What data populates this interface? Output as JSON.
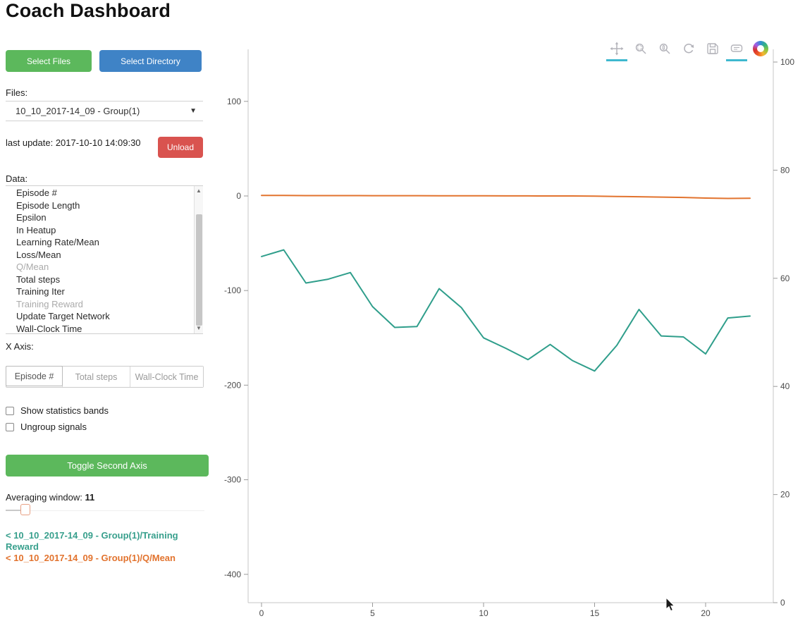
{
  "page": {
    "title": "Coach Dashboard"
  },
  "sidebar": {
    "select_files_label": "Select Files",
    "select_directory_label": "Select Directory",
    "files_label": "Files:",
    "files_selected": "10_10_2017-14_09 - Group(1)",
    "last_update": "last update: 2017-10-10 14:09:30",
    "unload_label": "Unload",
    "data_label": "Data:",
    "data_items": [
      {
        "label": "Episode #",
        "selected": false
      },
      {
        "label": "Episode Length",
        "selected": false
      },
      {
        "label": "Epsilon",
        "selected": false
      },
      {
        "label": "In Heatup",
        "selected": false
      },
      {
        "label": "Learning Rate/Mean",
        "selected": false
      },
      {
        "label": "Loss/Mean",
        "selected": false
      },
      {
        "label": "Q/Mean",
        "selected": true
      },
      {
        "label": "Total steps",
        "selected": false
      },
      {
        "label": "Training Iter",
        "selected": false
      },
      {
        "label": "Training Reward",
        "selected": true
      },
      {
        "label": "Update Target Network",
        "selected": false
      },
      {
        "label": "Wall-Clock Time",
        "selected": false
      }
    ],
    "x_axis_label": "X Axis:",
    "x_axis_tabs": [
      "Episode #",
      "Total steps",
      "Wall-Clock Time"
    ],
    "x_axis_active": "Episode #",
    "checkboxes": [
      {
        "label": "Show statistics bands",
        "checked": false
      },
      {
        "label": "Ungroup signals",
        "checked": false
      }
    ],
    "toggle_second_axis_label": "Toggle Second Axis",
    "averaging_window_label": "Averaging window:",
    "averaging_window_value": "11",
    "legend": [
      {
        "label": "< 10_10_2017-14_09 - Group(1)/Training Reward",
        "color": "#379f8c"
      },
      {
        "label": "< 10_10_2017-14_09 - Group(1)/Q/Mean",
        "color": "#e2732e"
      }
    ]
  },
  "toolbar": {
    "tools": [
      {
        "name": "pan",
        "active": true
      },
      {
        "name": "box-zoom",
        "active": false
      },
      {
        "name": "wheel-zoom",
        "active": false
      },
      {
        "name": "reset",
        "active": false
      },
      {
        "name": "save",
        "active": false
      },
      {
        "name": "hover",
        "active": true
      }
    ],
    "logo": "bokeh"
  },
  "chart_data": {
    "type": "line",
    "title": "",
    "xlabel": "",
    "ylabel": "",
    "x": [
      0,
      1,
      2,
      3,
      4,
      5,
      6,
      7,
      8,
      9,
      10,
      11,
      12,
      13,
      14,
      15,
      16,
      17,
      18,
      19,
      20,
      21,
      22
    ],
    "x_ticks": [
      0,
      5,
      10,
      15,
      20
    ],
    "left_axis_ticks": [
      100,
      0,
      -100,
      -200,
      -300,
      -400
    ],
    "right_axis_ticks": [
      100,
      80,
      60,
      40,
      20,
      0
    ],
    "left_axis_range": [
      -430,
      155
    ],
    "right_axis_range": [
      0,
      100
    ],
    "grid": false,
    "legend_position": "sidebar",
    "series": [
      {
        "name": "Training Reward",
        "color": "#2f9e8b",
        "axis": "left",
        "values": [
          -64,
          -57,
          -92,
          -88,
          -81,
          -117,
          -139,
          -138,
          -98,
          -118,
          -150,
          -161,
          -173,
          -157,
          -174,
          -185,
          -158,
          -120,
          -148,
          -149,
          -167,
          -129,
          -127
        ]
      },
      {
        "name": "Q/Mean",
        "color": "#e2732e",
        "axis": "left",
        "values": [
          0.5,
          0.5,
          0.4,
          0.4,
          0.4,
          0.3,
          0.3,
          0.3,
          0.2,
          0.2,
          0.2,
          0.1,
          0.1,
          0,
          0,
          -0.2,
          -0.5,
          -0.8,
          -1.2,
          -1.6,
          -2.2,
          -2.6,
          -2.4
        ]
      }
    ]
  }
}
